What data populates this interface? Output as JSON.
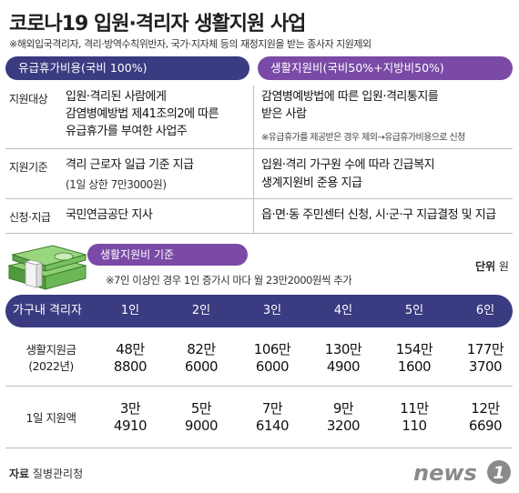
{
  "title": "코로나19 입원·격리자 생활지원 사업",
  "note_top": "※해외입국격리자, 격리·방역수칙위반자, 국가·지자체 등의 재정지원을 받는 종사자 지원제외",
  "left_header": "유급휴가비용(국비 100%)",
  "right_header": "생활지원비(국비50%+지방비50%)",
  "rows": {
    "target": {
      "label": "지원대상",
      "left_lines": [
        "입원·격리된 사람에게",
        "감염병예방법 제41조의2에 따른",
        "유급휴가를 부여한 사업주"
      ],
      "right_lines": [
        "감염병예방법에 따른 입원·격리통지를",
        "받은 사람"
      ],
      "right_note": "※유급휴가를 제공받은 경우 제외→유급휴가비용으로 신청"
    },
    "criteria": {
      "label": "지원기준",
      "left_line1": "격리 근로자 일급 기준 지급",
      "left_line2": "(1일 상한 7만3000원)",
      "right_lines": [
        "입원·격리 가구원 수에 따라 긴급복지",
        "생계지원비 준용 지급"
      ]
    },
    "apply": {
      "label": "신청·지급",
      "left": "국민연금공단 지사",
      "right": "읍·면·동 주민센터 신청, 시·군·구 지급결정 및 지급"
    }
  },
  "section_label": "생활지원비 기준",
  "section_note": "※7인 이상인 경우 1인 증가시 마다 월 23만2000원씩 추가",
  "unit_label": "단위",
  "unit_value": "원",
  "table": {
    "header_label": "가구내 격리자",
    "columns": [
      "1인",
      "2인",
      "3인",
      "4인",
      "5인",
      "6인"
    ],
    "living_label_1": "생활지원금",
    "living_label_2": "(2022년)",
    "living": [
      [
        "48만",
        "8800"
      ],
      [
        "82만",
        "6000"
      ],
      [
        "106만",
        "6000"
      ],
      [
        "130만",
        "4900"
      ],
      [
        "154만",
        "1600"
      ],
      [
        "177만",
        "3700"
      ]
    ],
    "daily_label": "1일 지원액",
    "daily": [
      [
        "3만",
        "4910"
      ],
      [
        "5만",
        "9000"
      ],
      [
        "7만",
        "6140"
      ],
      [
        "9만",
        "3200"
      ],
      [
        "11만",
        "110"
      ],
      [
        "12만",
        "6690"
      ]
    ]
  },
  "source_label": "자료",
  "source_value": "질병관리청",
  "logo_text": "news",
  "logo_digit": "1",
  "colors": {
    "navy": "#3a3b80",
    "purple": "#7a4aa6",
    "money_green": "#5aa24a",
    "logo_gray": "#8a8a8a"
  }
}
